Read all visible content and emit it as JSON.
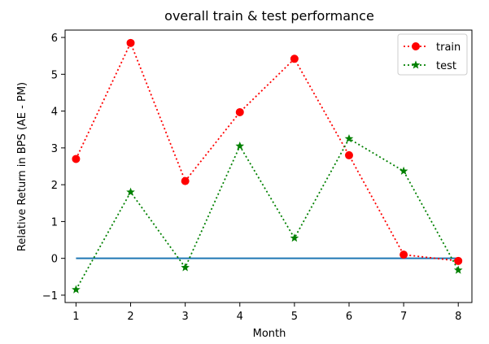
{
  "chart_data": {
    "type": "line",
    "title": "overall train & test performance",
    "xlabel": "Month",
    "ylabel": "Relative Return in BPS (AE - PM)",
    "x": [
      1,
      2,
      3,
      4,
      5,
      6,
      7,
      8
    ],
    "xlim": [
      0.8,
      8.25
    ],
    "ylim": [
      -1.2,
      6.2
    ],
    "xticks": [
      1,
      2,
      3,
      4,
      5,
      6,
      7,
      8
    ],
    "yticks": [
      -1,
      0,
      1,
      2,
      3,
      4,
      5,
      6
    ],
    "grid": false,
    "legend": "top-right",
    "series": [
      {
        "name": "train",
        "values": [
          2.7,
          5.85,
          2.1,
          3.97,
          5.42,
          2.8,
          0.1,
          -0.07
        ],
        "color": "#ff0000",
        "marker": "circle",
        "linestyle": "dotted"
      },
      {
        "name": "test",
        "values": [
          -0.85,
          1.8,
          -0.25,
          3.05,
          0.55,
          3.25,
          2.37,
          -0.32
        ],
        "color": "#008000",
        "marker": "star",
        "linestyle": "dotted"
      },
      {
        "values": [
          0,
          0,
          0,
          0,
          0,
          0,
          0,
          0
        ],
        "color": "#1f77b4",
        "marker": "none",
        "linestyle": "solid"
      }
    ]
  }
}
